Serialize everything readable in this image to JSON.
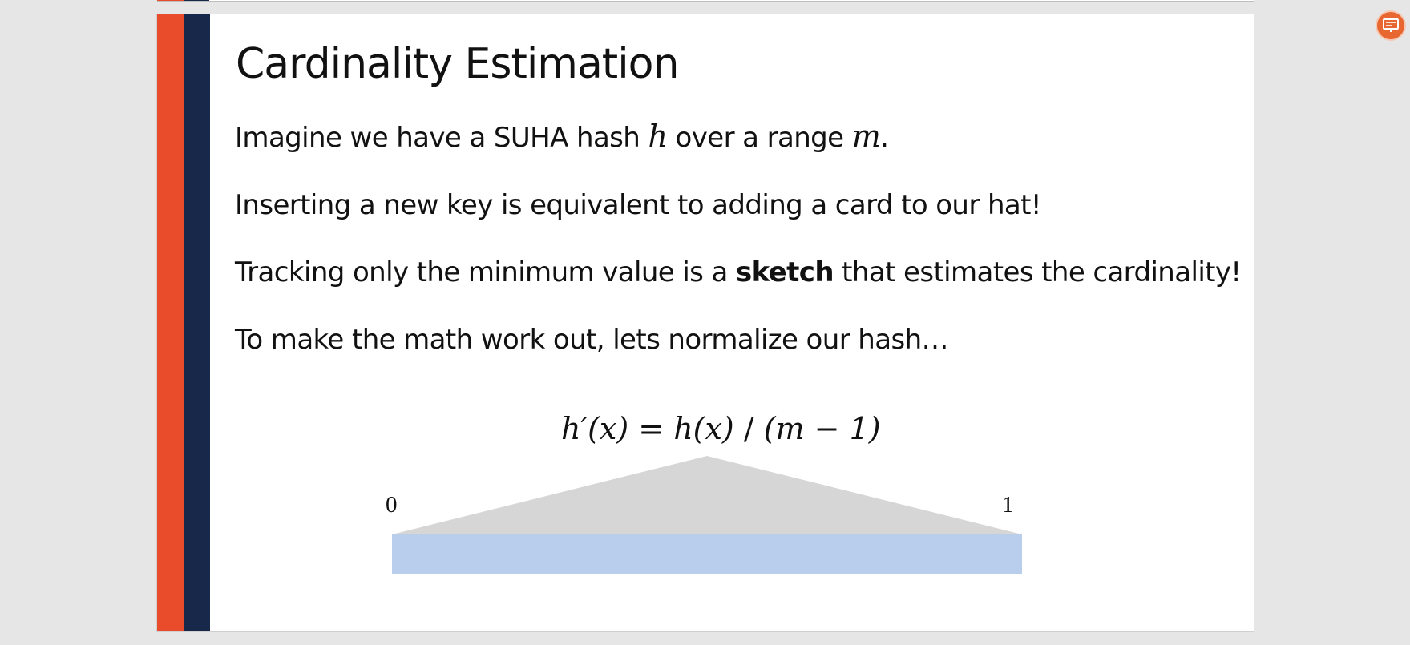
{
  "slide": {
    "title": "Cardinality Estimation",
    "line1": {
      "pre": "Imagine we have a SUHA hash ",
      "var_h": "h",
      "mid": " over a range ",
      "var_m": "m",
      "post": "."
    },
    "line2": "Inserting a new key is equivalent to adding a card to our hat!",
    "line3": {
      "pre": "Tracking only the minimum value is a ",
      "bold": "sketch",
      "post": " that estimates the cardinality!"
    },
    "line4": "To make the math work out, lets normalize our hash…",
    "formula": {
      "lhs": "h′(x)",
      "eq": " = ",
      "rhs_h": "h(x)",
      "slash": " / ",
      "denom": "(m − 1)"
    },
    "range_start": "0",
    "range_end": "1"
  },
  "colors": {
    "accent_orange": "#e84c2a",
    "accent_navy": "#18284a",
    "bar_fill": "#b9cdec",
    "cone_fill": "#d6d6d6"
  },
  "icons": {
    "corner_button": "presenter-view-icon"
  }
}
